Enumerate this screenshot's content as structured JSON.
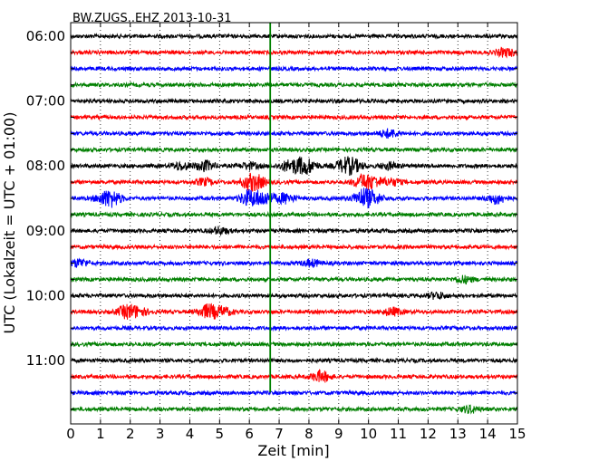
{
  "chart_data": {
    "type": "line",
    "title": "BW.ZUGS..EHZ 2013-10-31",
    "xlabel": "Zeit  [min]",
    "ylabel": "UTC (Lokalzeit = UTC + 01:00)",
    "xlim": [
      0,
      15
    ],
    "x_ticks": [
      "0",
      "1",
      "2",
      "3",
      "4",
      "5",
      "6",
      "7",
      "8",
      "9",
      "10",
      "11",
      "12",
      "13",
      "14",
      "15"
    ],
    "y_tick_labels": [
      "06:00",
      "07:00",
      "08:00",
      "09:00",
      "10:00",
      "11:00"
    ],
    "grid": true,
    "trace_colors": [
      "#000000",
      "#ff0000",
      "#0000ff",
      "#008000"
    ],
    "marker_line": {
      "x_min": 6.7,
      "color": "#008000"
    },
    "rows": [
      {
        "label": "06:00",
        "color": "#000000",
        "events": []
      },
      {
        "label": "06:15",
        "color": "#ff0000",
        "events": [
          {
            "x": 14.6,
            "amp": 1.6
          }
        ]
      },
      {
        "label": "06:30",
        "color": "#0000ff",
        "events": []
      },
      {
        "label": "06:45",
        "color": "#008000",
        "events": []
      },
      {
        "label": "07:00",
        "color": "#000000",
        "events": []
      },
      {
        "label": "07:15",
        "color": "#ff0000",
        "events": []
      },
      {
        "label": "07:30",
        "color": "#0000ff",
        "events": [
          {
            "x": 10.7,
            "amp": 1.6
          }
        ]
      },
      {
        "label": "07:45",
        "color": "#008000",
        "events": []
      },
      {
        "label": "08:00",
        "color": "#000000",
        "events": [
          {
            "x": 3.7,
            "amp": 1.5
          },
          {
            "x": 4.5,
            "amp": 2.0
          },
          {
            "x": 6.0,
            "amp": 1.3
          },
          {
            "x": 7.3,
            "amp": 1.8
          },
          {
            "x": 7.7,
            "amp": 2.2
          },
          {
            "x": 8.0,
            "amp": 2.0
          },
          {
            "x": 9.2,
            "amp": 2.4
          },
          {
            "x": 9.5,
            "amp": 2.0
          },
          {
            "x": 10.7,
            "amp": 1.3
          }
        ]
      },
      {
        "label": "08:15",
        "color": "#ff0000",
        "events": [
          {
            "x": 4.5,
            "amp": 1.3
          },
          {
            "x": 6.0,
            "amp": 2.5
          },
          {
            "x": 6.3,
            "amp": 1.8
          },
          {
            "x": 9.8,
            "amp": 2.6
          },
          {
            "x": 10.2,
            "amp": 1.8
          },
          {
            "x": 10.8,
            "amp": 1.3
          }
        ]
      },
      {
        "label": "08:30",
        "color": "#0000ff",
        "events": [
          {
            "x": 1.1,
            "amp": 1.5
          },
          {
            "x": 1.4,
            "amp": 2.7
          },
          {
            "x": 6.0,
            "amp": 3.2
          },
          {
            "x": 6.5,
            "amp": 2.5
          },
          {
            "x": 7.2,
            "amp": 2.0
          },
          {
            "x": 9.8,
            "amp": 3.5
          },
          {
            "x": 10.2,
            "amp": 1.8
          },
          {
            "x": 14.3,
            "amp": 2.0
          }
        ]
      },
      {
        "label": "08:45",
        "color": "#008000",
        "events": []
      },
      {
        "label": "09:00",
        "color": "#000000",
        "events": [
          {
            "x": 5.0,
            "amp": 1.3
          }
        ]
      },
      {
        "label": "09:15",
        "color": "#ff0000",
        "events": []
      },
      {
        "label": "09:30",
        "color": "#0000ff",
        "events": [
          {
            "x": 0.3,
            "amp": 1.5
          },
          {
            "x": 8.1,
            "amp": 1.3
          }
        ]
      },
      {
        "label": "09:45",
        "color": "#008000",
        "events": [
          {
            "x": 13.2,
            "amp": 1.3
          }
        ]
      },
      {
        "label": "10:00",
        "color": "#000000",
        "events": [
          {
            "x": 12.3,
            "amp": 1.2
          }
        ]
      },
      {
        "label": "10:15",
        "color": "#ff0000",
        "events": [
          {
            "x": 1.9,
            "amp": 2.5
          },
          {
            "x": 2.3,
            "amp": 1.4
          },
          {
            "x": 4.6,
            "amp": 2.7
          },
          {
            "x": 5.1,
            "amp": 1.8
          },
          {
            "x": 10.8,
            "amp": 1.5
          }
        ]
      },
      {
        "label": "10:30",
        "color": "#0000ff",
        "events": []
      },
      {
        "label": "10:45",
        "color": "#008000",
        "events": []
      },
      {
        "label": "11:00",
        "color": "#000000",
        "events": []
      },
      {
        "label": "11:15",
        "color": "#ff0000",
        "events": [
          {
            "x": 8.4,
            "amp": 2.2
          }
        ]
      },
      {
        "label": "11:30",
        "color": "#0000ff",
        "events": []
      },
      {
        "label": "11:45",
        "color": "#008000",
        "events": [
          {
            "x": 13.4,
            "amp": 1.3
          }
        ]
      }
    ]
  }
}
